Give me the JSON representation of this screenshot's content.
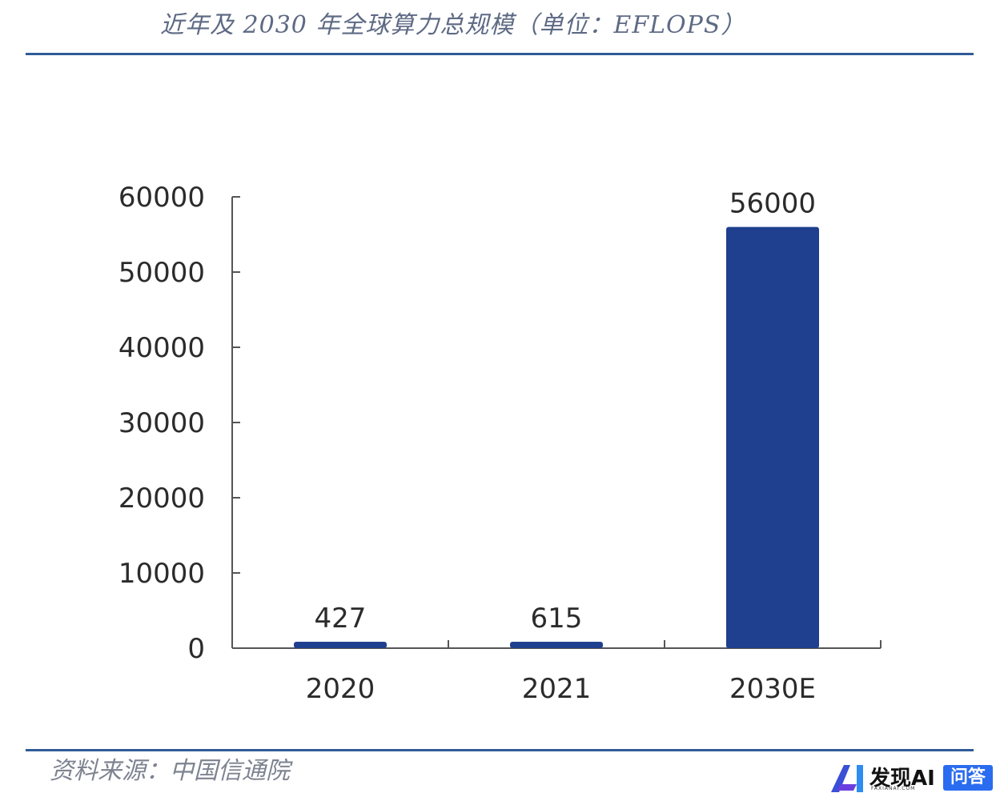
{
  "header": {
    "title": "近年及 2030 年全球算力总规模（单位：EFLOPS）"
  },
  "footer": {
    "source": "资料来源：中国信通院"
  },
  "watermark": {
    "brand": "发现AI",
    "sub": "FAXIANAI.COM",
    "badge": "问答"
  },
  "colors": {
    "bar": "#1f3f8f",
    "rule": "#2f5b98",
    "axis": "#555555"
  },
  "chart_data": {
    "type": "bar",
    "title": "近年及 2030 年全球算力总规模（单位：EFLOPS）",
    "categories": [
      "2020",
      "2021",
      "2030E"
    ],
    "values": [
      427,
      615,
      56000
    ],
    "value_labels": [
      "427",
      "615",
      "56000"
    ],
    "ylim": [
      0,
      60000
    ],
    "yticks": [
      0,
      10000,
      20000,
      30000,
      40000,
      50000,
      60000
    ],
    "ytick_labels": [
      "0",
      "10000",
      "20000",
      "30000",
      "40000",
      "50000",
      "60000"
    ],
    "grid": false,
    "legend": "none"
  }
}
